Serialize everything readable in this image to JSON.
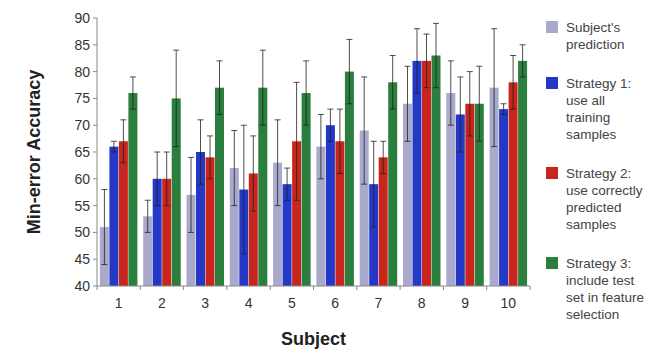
{
  "chart_data": {
    "type": "bar",
    "x_label": "Subject",
    "y_label": "Min-error Accuracy",
    "categories": [
      "1",
      "2",
      "3",
      "4",
      "5",
      "6",
      "7",
      "8",
      "9",
      "10"
    ],
    "series": [
      {
        "name": "Subject's prediction",
        "color": "#a9a9cc",
        "values": [
          51,
          53,
          57,
          62,
          63,
          66,
          69,
          74,
          76,
          77
        ],
        "errors": [
          7,
          3,
          7,
          7,
          8,
          6,
          10,
          7,
          6,
          11
        ]
      },
      {
        "name": "Strategy 1: use all training samples",
        "color": "#2438c8",
        "values": [
          66,
          60,
          65,
          58,
          59,
          70,
          59,
          82,
          72,
          73
        ],
        "errors": [
          1,
          5,
          6,
          12,
          3,
          3,
          8,
          6,
          7,
          1
        ]
      },
      {
        "name": "Strategy 2: use correctly predicted samples",
        "color": "#c8261c",
        "values": [
          67,
          60,
          64,
          61,
          67,
          67,
          64,
          82,
          74,
          78
        ],
        "errors": [
          4,
          5,
          4,
          7,
          11,
          6,
          3,
          5,
          6,
          5
        ]
      },
      {
        "name": "Strategy 3: include test set in feature selection",
        "color": "#2a7e3e",
        "values": [
          76,
          75,
          77,
          77,
          76,
          80,
          78,
          83,
          74,
          82
        ],
        "errors": [
          3,
          9,
          5,
          7,
          6,
          6,
          5,
          6,
          7,
          3
        ]
      }
    ],
    "ylim": [
      40,
      90
    ],
    "yticks": [
      40,
      45,
      50,
      55,
      60,
      65,
      70,
      75,
      80,
      85,
      90
    ],
    "grid": false,
    "legend": "right"
  }
}
